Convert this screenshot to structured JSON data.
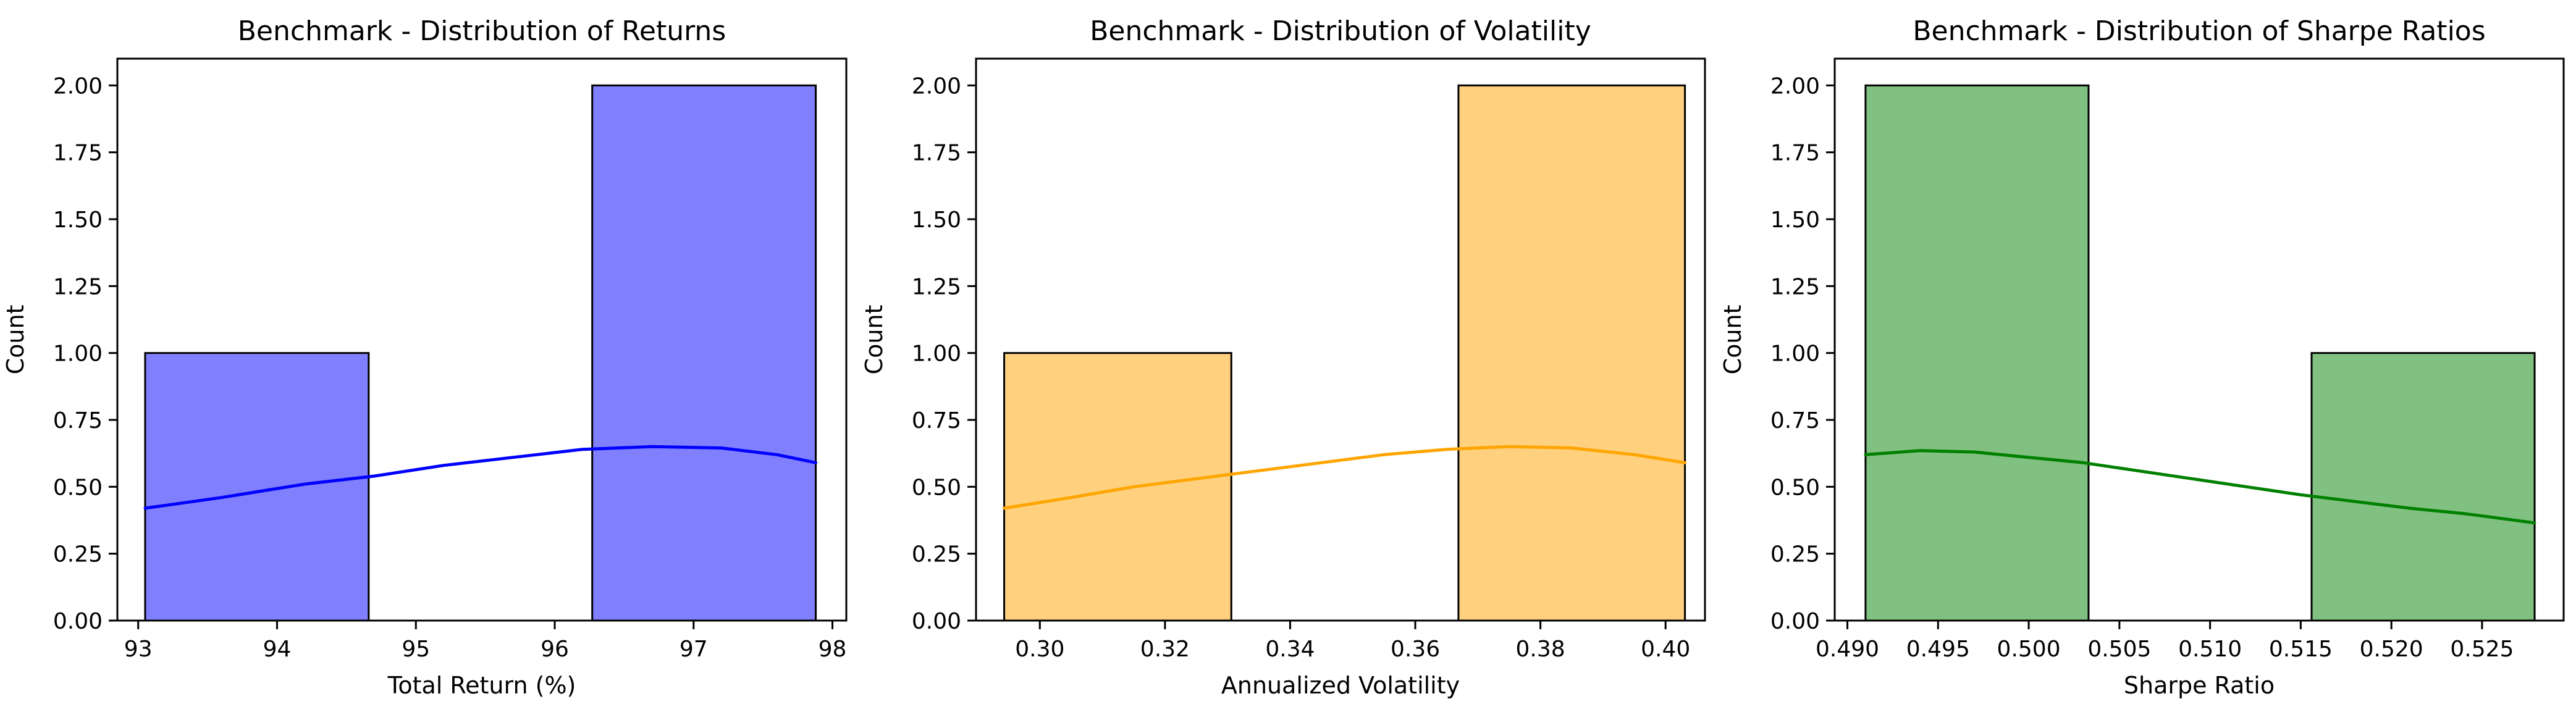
{
  "chart_data": [
    {
      "type": "bar",
      "title": "Benchmark - Distribution of Returns",
      "xlabel": "Total Return (%)",
      "ylabel": "Count",
      "xlim": [
        92.85,
        98.1
      ],
      "ylim": [
        0,
        2.1
      ],
      "x_ticks": [
        93,
        94,
        95,
        96,
        97,
        98
      ],
      "x_tick_labels": [
        "93",
        "94",
        "95",
        "96",
        "97",
        "98"
      ],
      "y_ticks": [
        0,
        0.25,
        0.5,
        0.75,
        1.0,
        1.25,
        1.5,
        1.75,
        2.0
      ],
      "y_tick_labels": [
        "0.00",
        "0.25",
        "0.50",
        "0.75",
        "1.00",
        "1.25",
        "1.50",
        "1.75",
        "2.00"
      ],
      "bins": [
        {
          "x0": 93.05,
          "x1": 94.66,
          "count": 1
        },
        {
          "x0": 94.66,
          "x1": 96.27,
          "count": 0
        },
        {
          "x0": 96.27,
          "x1": 97.88,
          "count": 2
        }
      ],
      "kde": {
        "x": [
          93.05,
          93.6,
          94.2,
          94.7,
          95.2,
          95.7,
          96.2,
          96.7,
          97.2,
          97.6,
          97.88
        ],
        "y": [
          0.42,
          0.46,
          0.51,
          0.54,
          0.58,
          0.61,
          0.64,
          0.65,
          0.645,
          0.62,
          0.59
        ]
      },
      "bar_color": "#8080ff",
      "line_color": "#0000ff"
    },
    {
      "type": "bar",
      "title": "Benchmark - Distribution of Volatility",
      "xlabel": "Annualized Volatility",
      "ylabel": "Count",
      "xlim": [
        0.2898,
        0.4063
      ],
      "ylim": [
        0,
        2.1
      ],
      "x_ticks": [
        0.3,
        0.32,
        0.34,
        0.36,
        0.38,
        0.4
      ],
      "x_tick_labels": [
        "0.30",
        "0.32",
        "0.34",
        "0.36",
        "0.38",
        "0.40"
      ],
      "y_ticks": [
        0,
        0.25,
        0.5,
        0.75,
        1.0,
        1.25,
        1.5,
        1.75,
        2.0
      ],
      "y_tick_labels": [
        "0.00",
        "0.25",
        "0.50",
        "0.75",
        "1.00",
        "1.25",
        "1.50",
        "1.75",
        "2.00"
      ],
      "bins": [
        {
          "x0": 0.2943,
          "x1": 0.3306,
          "count": 1
        },
        {
          "x0": 0.3306,
          "x1": 0.3669,
          "count": 0
        },
        {
          "x0": 0.3669,
          "x1": 0.4031,
          "count": 2
        }
      ],
      "kde": {
        "x": [
          0.2943,
          0.305,
          0.315,
          0.325,
          0.335,
          0.345,
          0.355,
          0.365,
          0.375,
          0.385,
          0.395,
          0.4031
        ],
        "y": [
          0.42,
          0.46,
          0.5,
          0.53,
          0.56,
          0.59,
          0.62,
          0.64,
          0.65,
          0.645,
          0.62,
          0.59
        ]
      },
      "bar_color": "#ffd07e",
      "line_color": "#ffa500"
    },
    {
      "type": "bar",
      "title": "Benchmark - Distribution of Sharpe Ratios",
      "xlabel": "Sharpe Ratio",
      "ylabel": "Count",
      "xlim": [
        0.4893,
        0.5295
      ],
      "ylim": [
        0,
        2.1
      ],
      "x_ticks": [
        0.49,
        0.495,
        0.5,
        0.505,
        0.51,
        0.515,
        0.52,
        0.525
      ],
      "x_tick_labels": [
        "0.490",
        "0.495",
        "0.500",
        "0.505",
        "0.510",
        "0.515",
        "0.520",
        "0.525"
      ],
      "y_ticks": [
        0,
        0.25,
        0.5,
        0.75,
        1.0,
        1.25,
        1.5,
        1.75,
        2.0
      ],
      "y_tick_labels": [
        "0.00",
        "0.25",
        "0.50",
        "0.75",
        "1.00",
        "1.25",
        "1.50",
        "1.75",
        "2.00"
      ],
      "bins": [
        {
          "x0": 0.491,
          "x1": 0.5033,
          "count": 2
        },
        {
          "x0": 0.5033,
          "x1": 0.5156,
          "count": 0
        },
        {
          "x0": 0.5156,
          "x1": 0.5279,
          "count": 1
        }
      ],
      "kde": {
        "x": [
          0.491,
          0.494,
          0.497,
          0.5,
          0.503,
          0.506,
          0.509,
          0.512,
          0.515,
          0.518,
          0.521,
          0.524,
          0.5279
        ],
        "y": [
          0.62,
          0.635,
          0.63,
          0.61,
          0.59,
          0.56,
          0.53,
          0.5,
          0.47,
          0.445,
          0.42,
          0.4,
          0.365
        ]
      },
      "bar_color": "#80c080",
      "line_color": "#008000"
    }
  ]
}
